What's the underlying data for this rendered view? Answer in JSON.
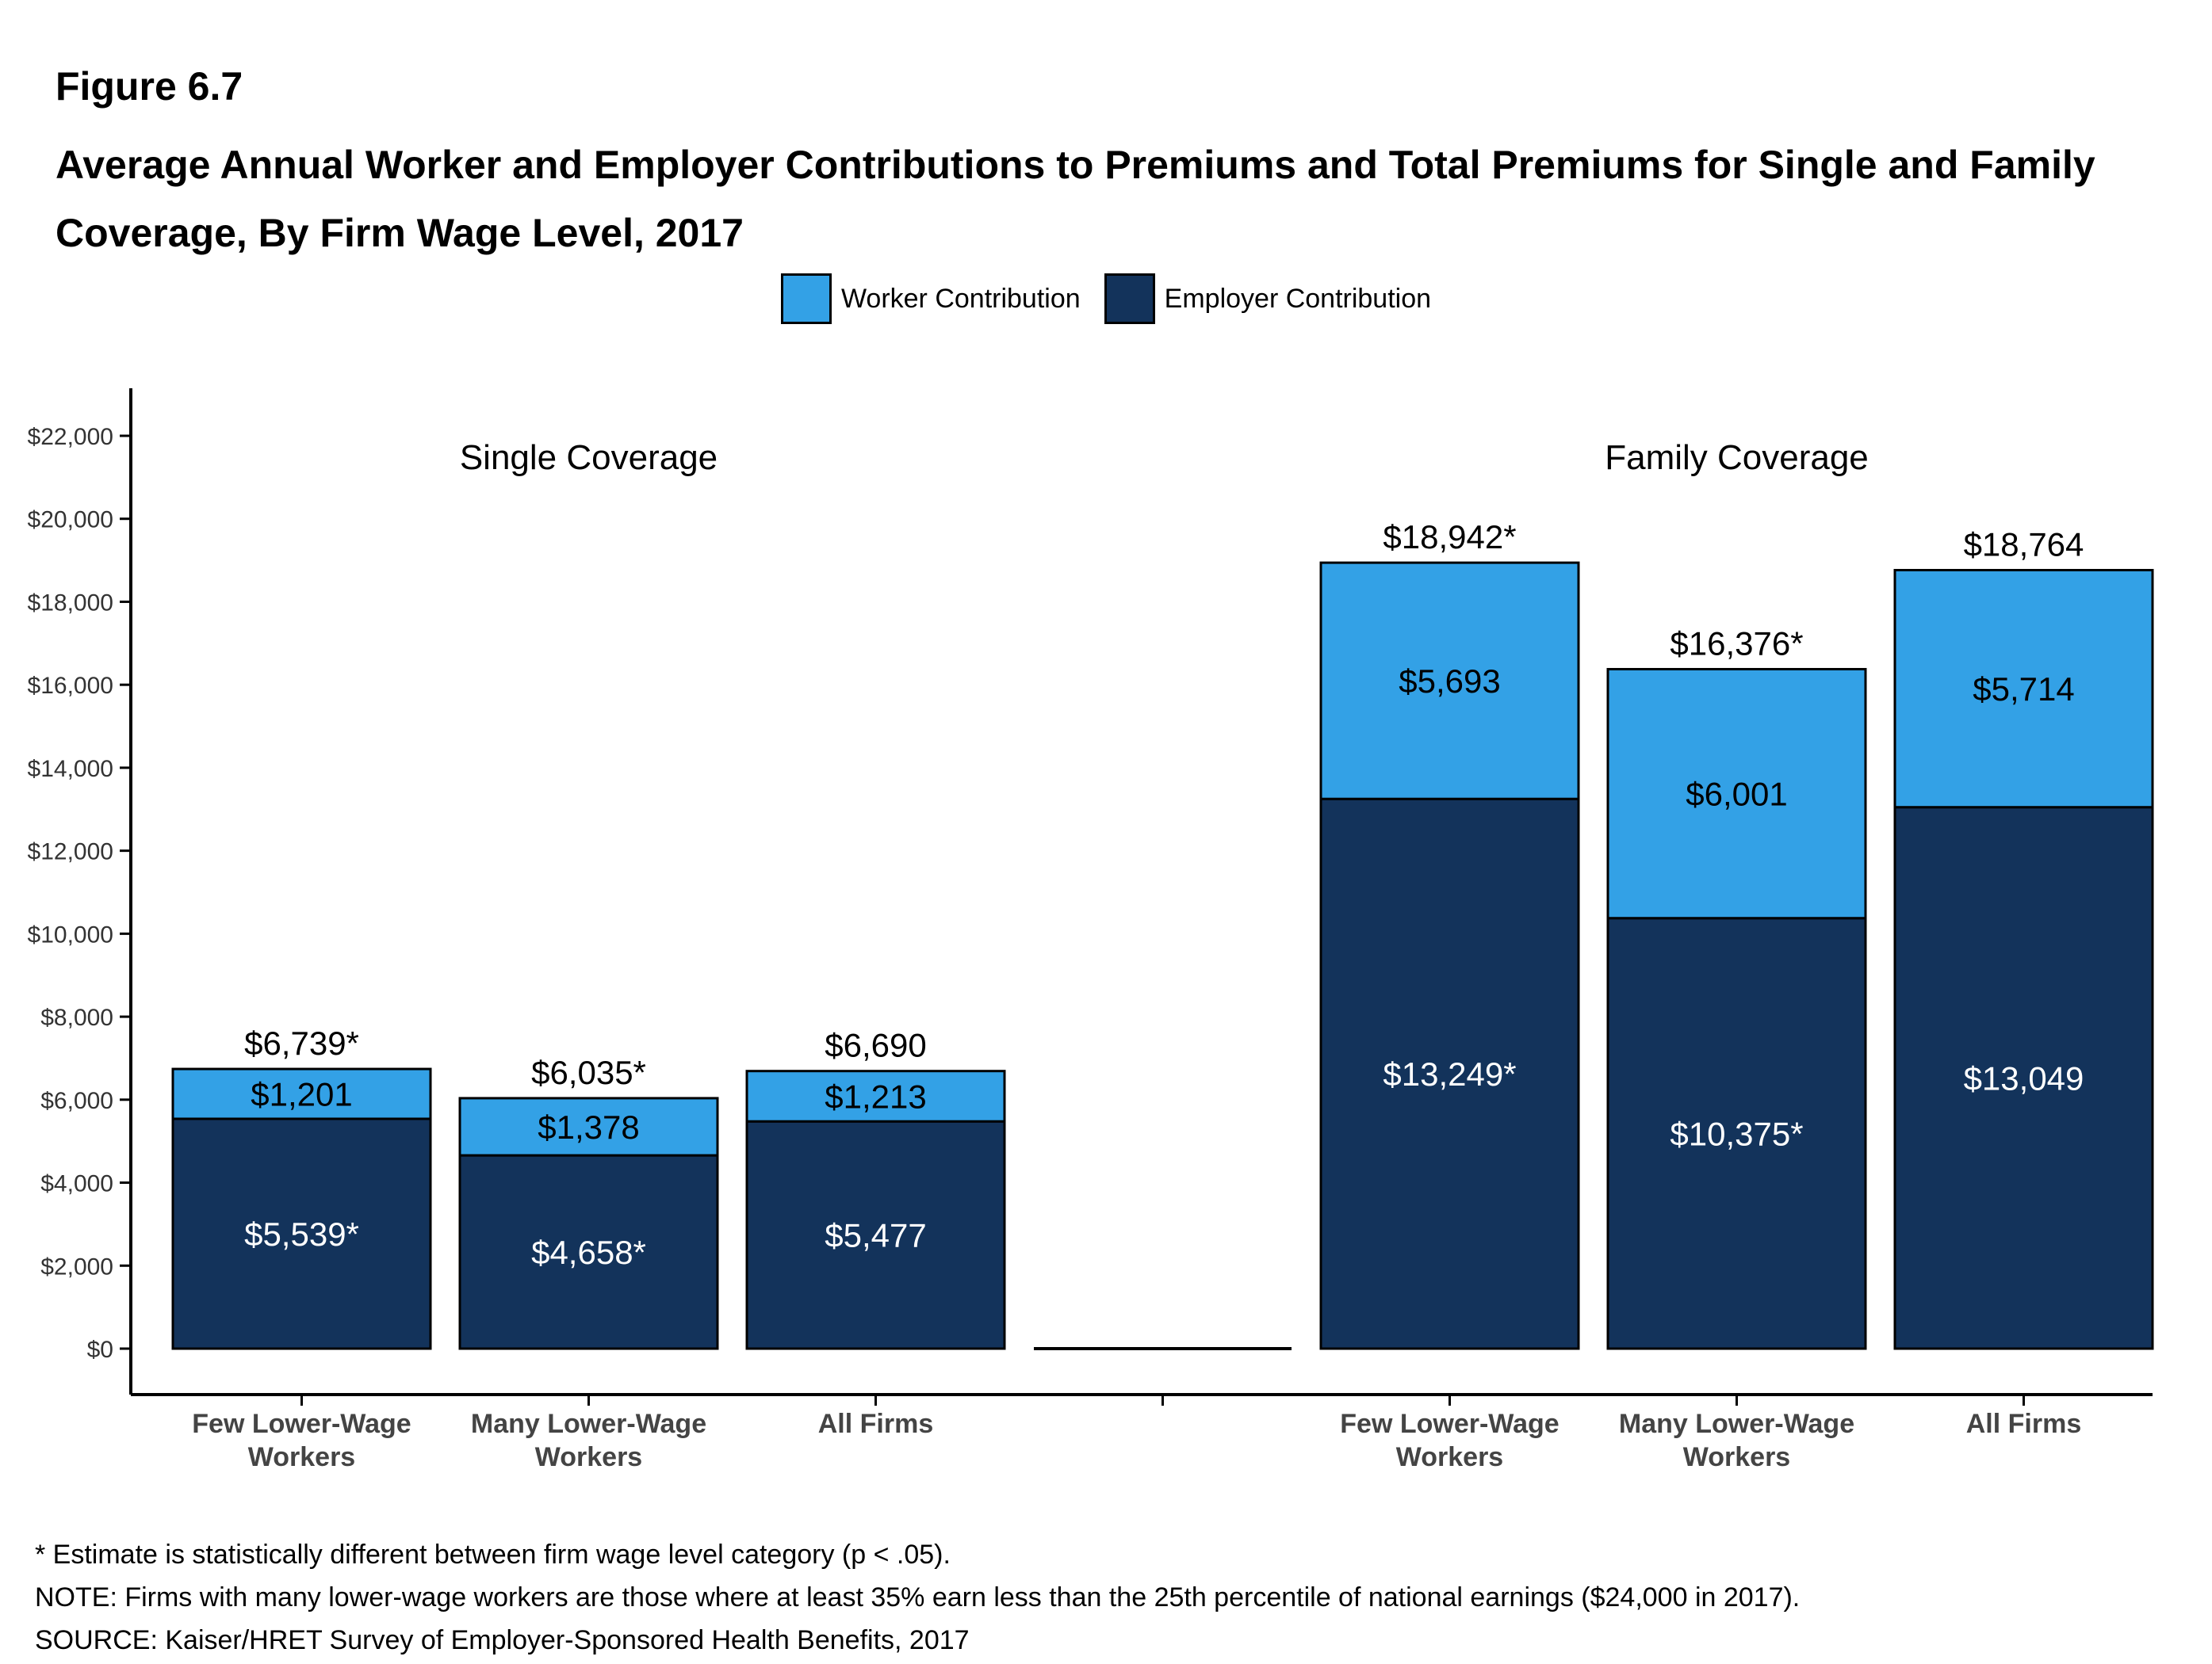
{
  "figure_label": "Figure 6.7",
  "title": "Average Annual Worker and Employer Contributions to Premiums and Total Premiums for Single and Family Coverage, By Firm Wage Level, 2017",
  "colors": {
    "worker": "#33a1e6",
    "employer": "#13335b"
  },
  "legend": [
    {
      "label": "Worker Contribution",
      "color": "#33a1e6"
    },
    {
      "label": "Employer Contribution",
      "color": "#13335b"
    }
  ],
  "chart_data": {
    "type": "bar",
    "stacked": true,
    "panels": [
      {
        "label": "Single Coverage",
        "categories": [
          "Few Lower-Wage Workers",
          "Many Lower-Wage Workers",
          "All Firms"
        ],
        "series": [
          {
            "name": "Employer Contribution",
            "values": [
              5539,
              4658,
              5477
            ],
            "labels": [
              "$5,539*",
              "$4,658*",
              "$5,477"
            ]
          },
          {
            "name": "Worker Contribution",
            "values": [
              1201,
              1378,
              1213
            ],
            "labels": [
              "$1,201",
              "$1,378",
              "$1,213"
            ]
          }
        ],
        "totals": [
          6739,
          6035,
          6690
        ],
        "total_labels": [
          "$6,739*",
          "$6,035*",
          "$6,690"
        ]
      },
      {
        "label": "Family Coverage",
        "categories": [
          "Few Lower-Wage Workers",
          "Many Lower-Wage Workers",
          "All Firms"
        ],
        "series": [
          {
            "name": "Employer Contribution",
            "values": [
              13249,
              10375,
              13049
            ],
            "labels": [
              "$13,249*",
              "$10,375*",
              "$13,049"
            ]
          },
          {
            "name": "Worker Contribution",
            "values": [
              5693,
              6001,
              5714
            ],
            "labels": [
              "$5,693",
              "$6,001",
              "$5,714"
            ]
          }
        ],
        "totals": [
          18942,
          16376,
          18764
        ],
        "total_labels": [
          "$18,942*",
          "$16,376*",
          "$18,764"
        ]
      }
    ],
    "category_labels": [
      [
        "Few Lower-Wage",
        "Workers"
      ],
      [
        "Many Lower-Wage",
        "Workers"
      ],
      [
        "All Firms"
      ]
    ],
    "ylim": [
      0,
      22000
    ],
    "yticks": [
      0,
      2000,
      4000,
      6000,
      8000,
      10000,
      12000,
      14000,
      16000,
      18000,
      20000,
      22000
    ],
    "ytick_labels": [
      "$0",
      "$2,000",
      "$4,000",
      "$6,000",
      "$8,000",
      "$10,000",
      "$12,000",
      "$14,000",
      "$16,000",
      "$18,000",
      "$20,000",
      "$22,000"
    ],
    "grid": false,
    "legend_position": "top"
  },
  "notes": [
    "* Estimate is statistically different between firm wage level category (p < .05).",
    "NOTE: Firms with many lower-wage workers are those where at least 35% earn less than the 25th percentile of national earnings ($24,000 in 2017).",
    "SOURCE: Kaiser/HRET Survey of Employer-Sponsored Health Benefits, 2017"
  ]
}
